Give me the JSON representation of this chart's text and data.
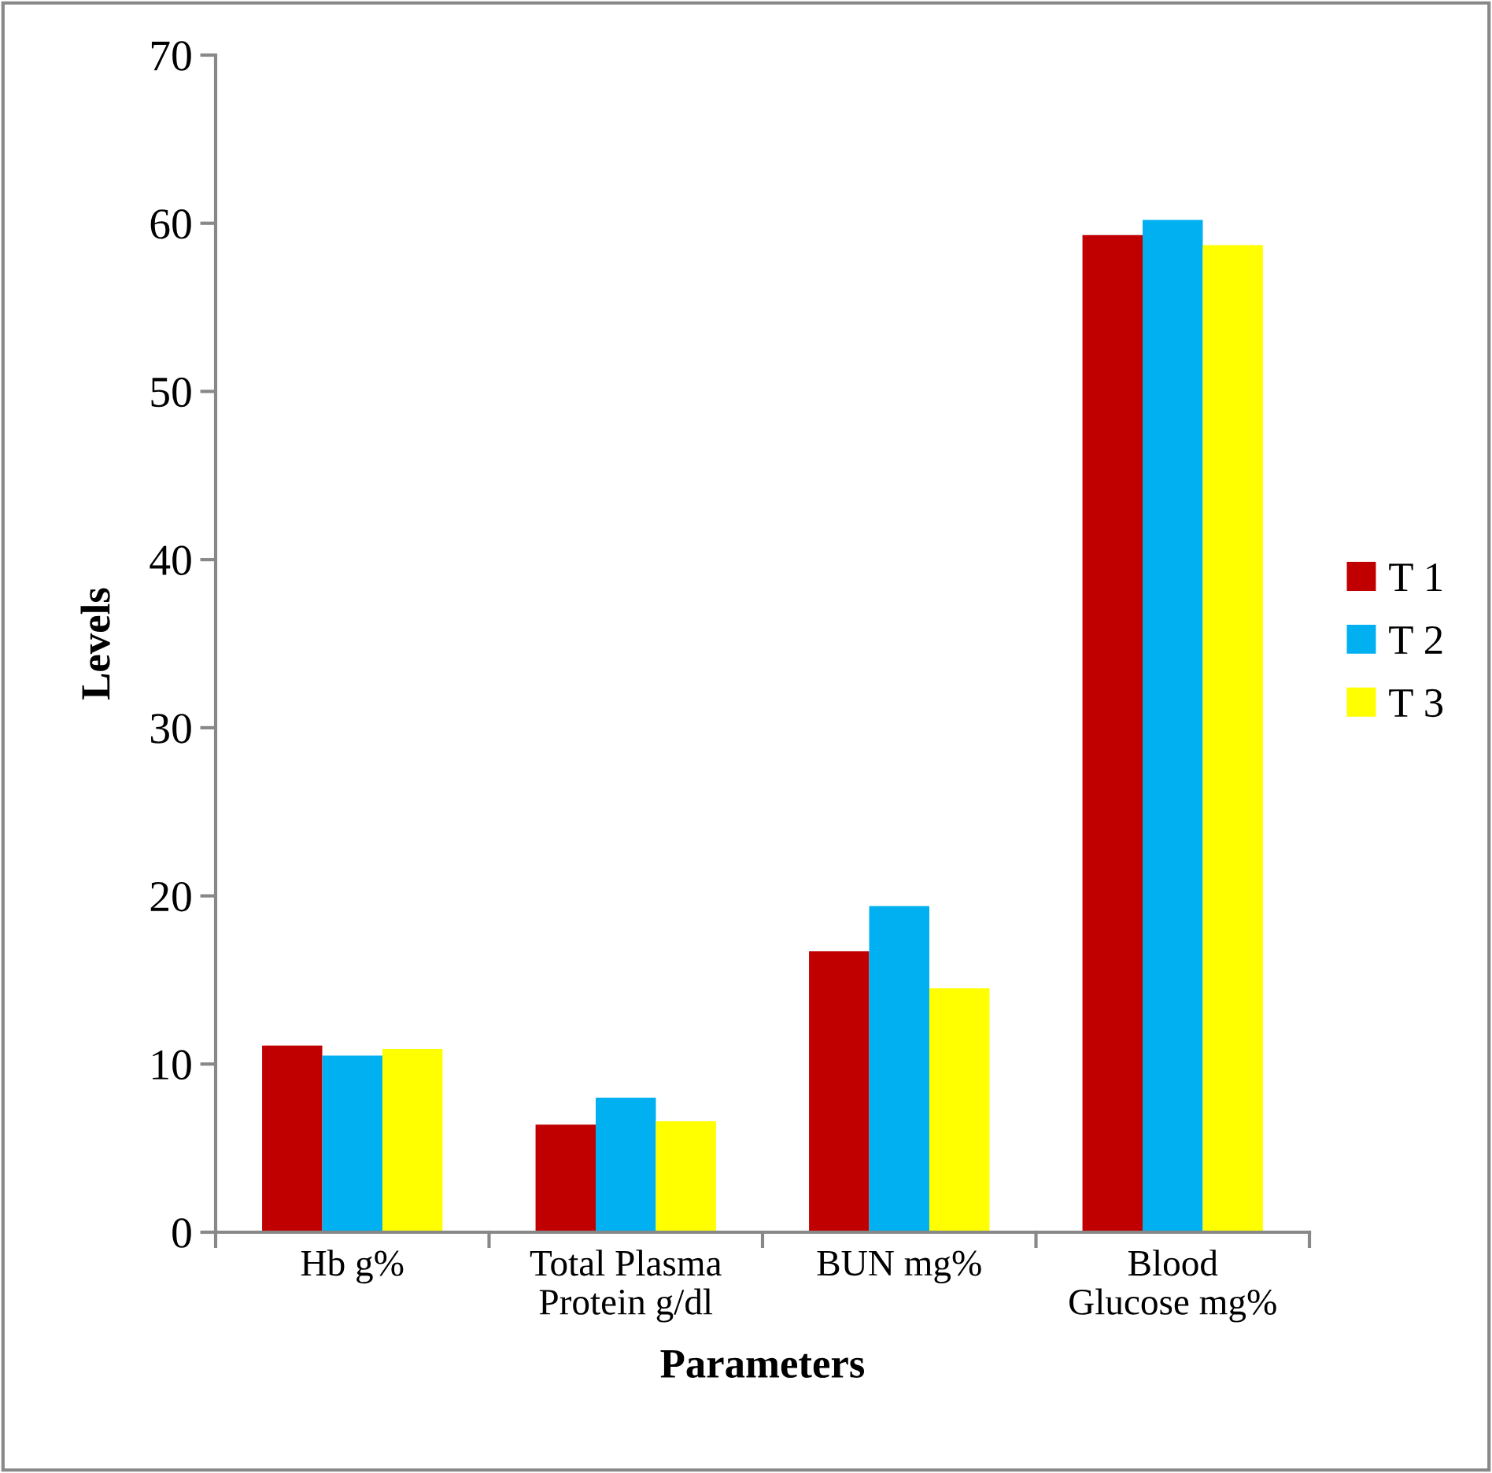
{
  "chart_data": {
    "type": "bar",
    "xlabel": "Parameters",
    "ylabel": "Levels",
    "categories": [
      "Hb g%",
      "Total Plasma\nProtein g/dl",
      "BUN mg%",
      "Blood\nGlucose mg%"
    ],
    "series": [
      {
        "name": "T 1",
        "color": "#c00000",
        "values": [
          11.1,
          6.4,
          16.7,
          59.3
        ]
      },
      {
        "name": "T 2",
        "color": "#00b0f0",
        "values": [
          10.5,
          8.0,
          19.4,
          60.2
        ]
      },
      {
        "name": "T 3",
        "color": "#ffff00",
        "values": [
          10.9,
          6.6,
          14.5,
          58.7
        ]
      }
    ],
    "ylim": [
      0,
      70
    ],
    "yticks": [
      0,
      10,
      20,
      30,
      40,
      50,
      60,
      70
    ],
    "grid": false,
    "legend": "right"
  }
}
